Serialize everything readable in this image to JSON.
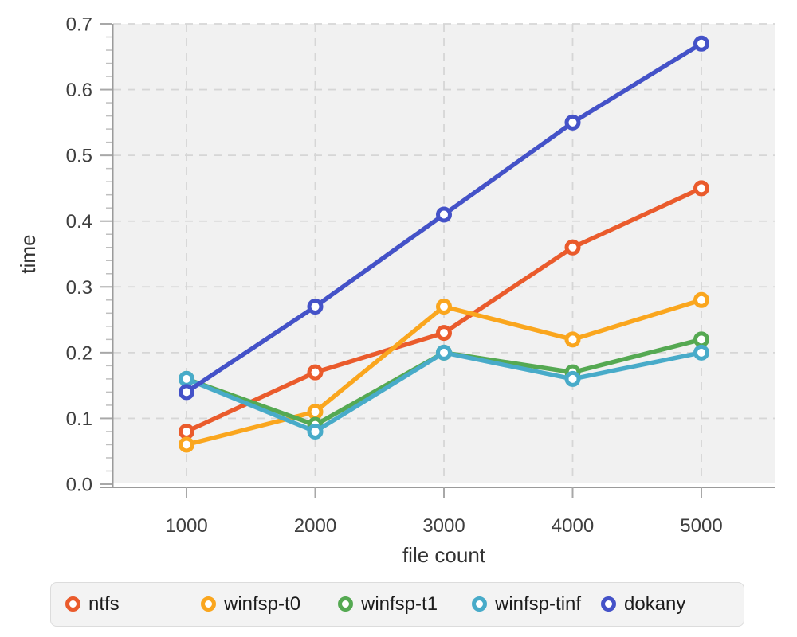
{
  "chart_data": {
    "type": "line",
    "title": "",
    "xlabel": "file count",
    "ylabel": "time",
    "categories": [
      1000,
      2000,
      3000,
      4000,
      5000
    ],
    "x_tick_labels": [
      "1000",
      "2000",
      "3000",
      "4000",
      "5000"
    ],
    "y_tick_labels": [
      "0.0",
      "0.1",
      "0.2",
      "0.3",
      "0.4",
      "0.5",
      "0.6",
      "0.7"
    ],
    "ylim": [
      0.0,
      0.7
    ],
    "y_major_step": 0.1,
    "y_minor_step": 0.02,
    "grid": "dashed",
    "legend_position": "bottom",
    "series": [
      {
        "name": "ntfs",
        "color": "#EA5B2C",
        "values": [
          0.08,
          0.17,
          0.23,
          0.36,
          0.45
        ]
      },
      {
        "name": "winfsp-t0",
        "color": "#FAA61E",
        "values": [
          0.06,
          0.11,
          0.27,
          0.22,
          0.28
        ]
      },
      {
        "name": "winfsp-t1",
        "color": "#55A952",
        "values": [
          0.16,
          0.09,
          0.2,
          0.17,
          0.22
        ]
      },
      {
        "name": "winfsp-tinf",
        "color": "#48ABC9",
        "values": [
          0.16,
          0.08,
          0.2,
          0.16,
          0.2
        ]
      },
      {
        "name": "dokany",
        "color": "#4452C8",
        "values": [
          0.14,
          0.27,
          0.41,
          0.55,
          0.67
        ]
      }
    ]
  },
  "style_colors": {
    "plot_bg": "#F1F1F1",
    "grid": "#D6D6D6",
    "axis_line": "#9B9B9B",
    "major_tick": "#A8A8A8",
    "minor_tick": "#BFBFBF",
    "tick_label": "#3F3F3F",
    "axis_title": "#333333"
  }
}
